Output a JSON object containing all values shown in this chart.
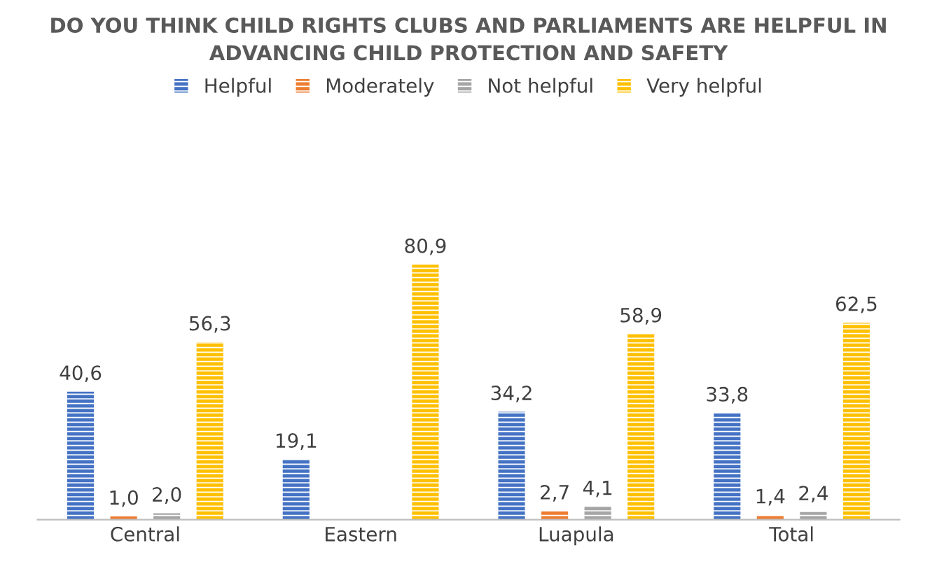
{
  "chart_data": {
    "type": "bar",
    "title": "DO YOU THINK CHILD RIGHTS CLUBS AND PARLIAMENTS ARE HELPFUL IN ADVANCING CHILD PROTECTION AND SAFETY",
    "categories": [
      "Central",
      "Eastern",
      "Luapula",
      "Total"
    ],
    "series": [
      {
        "name": "Helpful",
        "color": "#4472c4",
        "values": [
          40.6,
          19.1,
          34.2,
          33.8
        ],
        "value_labels": [
          "40,6",
          "19,1",
          "34,2",
          "33,8"
        ]
      },
      {
        "name": "Moderately",
        "color": "#ed7d31",
        "values": [
          1.0,
          null,
          2.7,
          1.4
        ],
        "value_labels": [
          "1,0",
          null,
          "2,7",
          "1,4"
        ]
      },
      {
        "name": "Not helpful",
        "color": "#a5a5a5",
        "values": [
          2.0,
          null,
          4.1,
          2.4
        ],
        "value_labels": [
          "2,0",
          null,
          "4,1",
          "2,4"
        ]
      },
      {
        "name": "Very helpful",
        "color": "#ffc000",
        "values": [
          56.3,
          80.9,
          58.9,
          62.5
        ],
        "value_labels": [
          "56,3",
          "80,9",
          "58,9",
          "62,5"
        ]
      }
    ],
    "legend": "top",
    "grid": false
  }
}
